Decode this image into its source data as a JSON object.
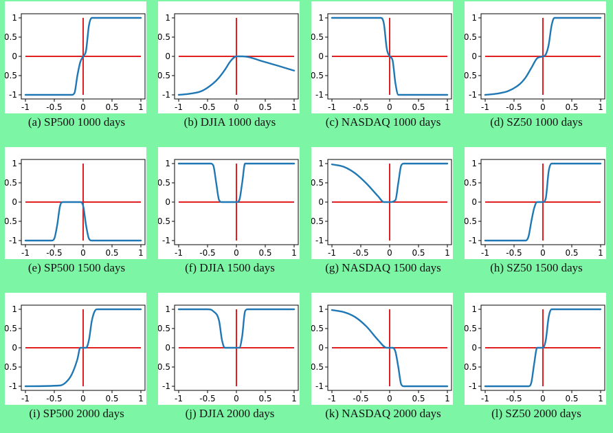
{
  "figure": {
    "x_ticks": [
      "-1",
      "-0.5",
      "0",
      "0.5",
      "1"
    ],
    "y_ticks": [
      "1",
      "0.5",
      "0",
      "0.5",
      "-1"
    ],
    "colors": {
      "background": "#7cf5a4",
      "axes_cross": "#e02020",
      "curve": "#1f77b4"
    }
  },
  "chart_data": [
    {
      "type": "line",
      "caption": "(a)  SP500 1000 days",
      "xlim": [
        -1,
        1
      ],
      "ylim": [
        -1,
        1
      ],
      "x": [
        -1,
        -0.2,
        -0.15,
        -0.1,
        -0.05,
        0,
        0.05,
        0.1,
        0.15,
        1
      ],
      "y": [
        -1,
        -1,
        -0.95,
        -0.5,
        -0.15,
        0,
        0.15,
        0.8,
        1,
        1
      ]
    },
    {
      "type": "line",
      "caption": "(b)  DJIA 1000 days",
      "xlim": [
        -1,
        1
      ],
      "ylim": [
        -1,
        1
      ],
      "x": [
        -1,
        -0.8,
        -0.6,
        -0.4,
        -0.3,
        -0.2,
        -0.1,
        0,
        0.1,
        0.5,
        1
      ],
      "y": [
        -1,
        -0.97,
        -0.9,
        -0.7,
        -0.55,
        -0.35,
        -0.12,
        0,
        0,
        -0.15,
        -0.37
      ]
    },
    {
      "type": "line",
      "caption": "(c)  NASDAQ 1000 days",
      "xlim": [
        -1,
        1
      ],
      "ylim": [
        -1,
        1
      ],
      "x": [
        -1,
        -0.15,
        -0.1,
        -0.05,
        0,
        0.05,
        0.1,
        0.15,
        0.2,
        1
      ],
      "y": [
        1,
        1,
        0.85,
        0.2,
        0,
        -0.1,
        -0.7,
        -1,
        -1,
        -1
      ]
    },
    {
      "type": "line",
      "caption": "(d)  SZ50 1000 days",
      "xlim": [
        -1,
        1
      ],
      "ylim": [
        -1,
        1
      ],
      "x": [
        -1,
        -0.8,
        -0.6,
        -0.4,
        -0.3,
        -0.2,
        -0.1,
        0,
        0.05,
        0.1,
        0.15,
        0.2,
        1
      ],
      "y": [
        -1,
        -0.97,
        -0.9,
        -0.72,
        -0.55,
        -0.3,
        -0.05,
        0,
        0.05,
        0.3,
        0.8,
        1,
        1
      ]
    },
    {
      "type": "line",
      "caption": "(e)  SP500 1500 days",
      "xlim": [
        -1,
        1
      ],
      "ylim": [
        -1,
        1
      ],
      "x": [
        -1,
        -0.55,
        -0.5,
        -0.45,
        -0.4,
        -0.35,
        -0.05,
        0,
        0.05,
        0.1,
        0.15,
        1
      ],
      "y": [
        -1,
        -1,
        -0.95,
        -0.6,
        -0.1,
        0,
        0,
        -0.1,
        -0.6,
        -0.95,
        -1,
        -1
      ]
    },
    {
      "type": "line",
      "caption": "(f)  DJIA 1500 days",
      "xlim": [
        -1,
        1
      ],
      "ylim": [
        -1,
        1
      ],
      "x": [
        -1,
        -0.45,
        -0.4,
        -0.35,
        -0.3,
        -0.25,
        0,
        0.05,
        0.1,
        0.15,
        1
      ],
      "y": [
        1,
        1,
        0.95,
        0.5,
        0.05,
        0,
        0,
        0.05,
        0.5,
        1,
        1
      ]
    },
    {
      "type": "line",
      "caption": "(g)  NASDAQ 1500 days",
      "xlim": [
        -1,
        1
      ],
      "ylim": [
        -1,
        1
      ],
      "x": [
        -1,
        -0.8,
        -0.6,
        -0.4,
        -0.2,
        -0.1,
        0,
        0.1,
        0.15,
        0.2,
        0.25,
        1
      ],
      "y": [
        0.98,
        0.92,
        0.75,
        0.48,
        0.15,
        0,
        0,
        0.05,
        0.5,
        0.95,
        1,
        1
      ]
    },
    {
      "type": "line",
      "caption": "(h)  SZ50 1500 days",
      "xlim": [
        -1,
        1
      ],
      "ylim": [
        -1,
        1
      ],
      "x": [
        -1,
        -0.3,
        -0.25,
        -0.2,
        -0.15,
        -0.1,
        0,
        0.05,
        0.1,
        0.15,
        1
      ],
      "y": [
        -1,
        -1,
        -0.9,
        -0.5,
        -0.15,
        0,
        0,
        0.1,
        0.8,
        1,
        1
      ]
    },
    {
      "type": "line",
      "caption": "(i)  SP500 2000 days",
      "xlim": [
        -1,
        1
      ],
      "ylim": [
        -1,
        1
      ],
      "x": [
        -1,
        -0.4,
        -0.3,
        -0.2,
        -0.1,
        -0.05,
        0.05,
        0.1,
        0.15,
        0.2,
        0.25,
        1
      ],
      "y": [
        -1,
        -0.98,
        -0.9,
        -0.7,
        -0.3,
        0,
        0,
        0.2,
        0.7,
        0.95,
        1,
        1
      ]
    },
    {
      "type": "line",
      "caption": "(j)  DJIA 2000 days",
      "xlim": [
        -1,
        1
      ],
      "ylim": [
        -1,
        1
      ],
      "x": [
        -1,
        -0.5,
        -0.4,
        -0.3,
        -0.25,
        -0.2,
        0.05,
        0.1,
        0.15,
        0.2,
        1
      ],
      "y": [
        1,
        1,
        0.95,
        0.7,
        0.2,
        0,
        0,
        0.3,
        0.95,
        1,
        1
      ]
    },
    {
      "type": "line",
      "caption": "(k)  NASDAQ 2000 days",
      "xlim": [
        -1,
        1
      ],
      "ylim": [
        -1,
        1
      ],
      "x": [
        -1,
        -0.8,
        -0.6,
        -0.4,
        -0.2,
        -0.05,
        0.05,
        0.1,
        0.15,
        0.2,
        0.25,
        0.3,
        1
      ],
      "y": [
        0.98,
        0.93,
        0.8,
        0.55,
        0.2,
        0,
        0,
        -0.1,
        -0.5,
        -0.95,
        -1,
        -1,
        -1
      ]
    },
    {
      "type": "line",
      "caption": "(l)  SZ50 2000 days",
      "xlim": [
        -1,
        1
      ],
      "ylim": [
        -1,
        1
      ],
      "x": [
        -1,
        -0.25,
        -0.2,
        -0.15,
        -0.1,
        0,
        0.05,
        0.1,
        0.15,
        1
      ],
      "y": [
        -1,
        -1,
        -0.9,
        -0.4,
        0,
        0,
        0.2,
        0.8,
        1,
        1
      ]
    }
  ]
}
